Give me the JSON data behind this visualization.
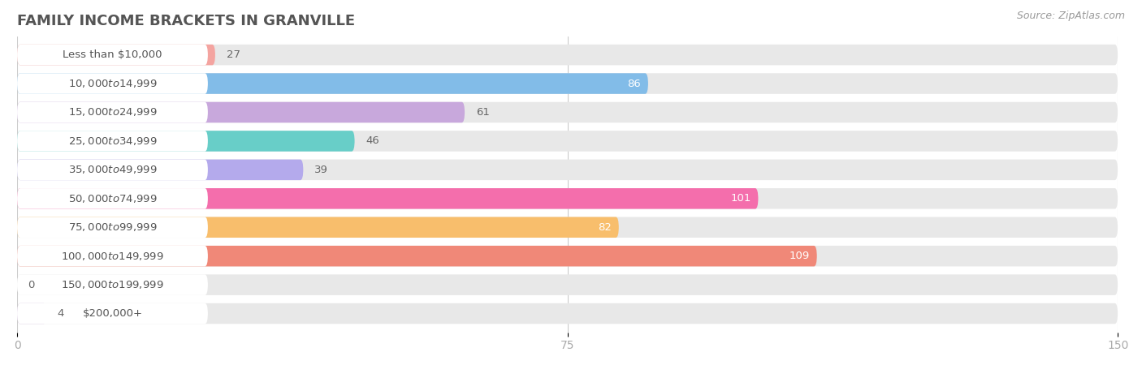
{
  "title": "FAMILY INCOME BRACKETS IN GRANVILLE",
  "source": "Source: ZipAtlas.com",
  "categories": [
    "Less than $10,000",
    "$10,000 to $14,999",
    "$15,000 to $24,999",
    "$25,000 to $34,999",
    "$35,000 to $49,999",
    "$50,000 to $74,999",
    "$75,000 to $99,999",
    "$100,000 to $149,999",
    "$150,000 to $199,999",
    "$200,000+"
  ],
  "values": [
    27,
    86,
    61,
    46,
    39,
    101,
    82,
    109,
    0,
    4
  ],
  "bar_colors": [
    "#f4a4a0",
    "#82bce8",
    "#c8a8dc",
    "#68cec8",
    "#b4aaec",
    "#f46eac",
    "#f8be6c",
    "#f08878",
    "#a8c8f0",
    "#ccb4d8"
  ],
  "xlim": [
    0,
    150
  ],
  "xticks": [
    0,
    75,
    150
  ],
  "bar_bg_color": "#e8e8e8",
  "white_label_bg": "#ffffff",
  "title_color": "#555555",
  "source_color": "#999999",
  "tick_color": "#aaaaaa",
  "value_color_dark": "#666666",
  "value_color_light": "#ffffff",
  "title_fontsize": 13,
  "label_fontsize": 9.5,
  "value_fontsize": 9.5,
  "tick_fontsize": 10
}
